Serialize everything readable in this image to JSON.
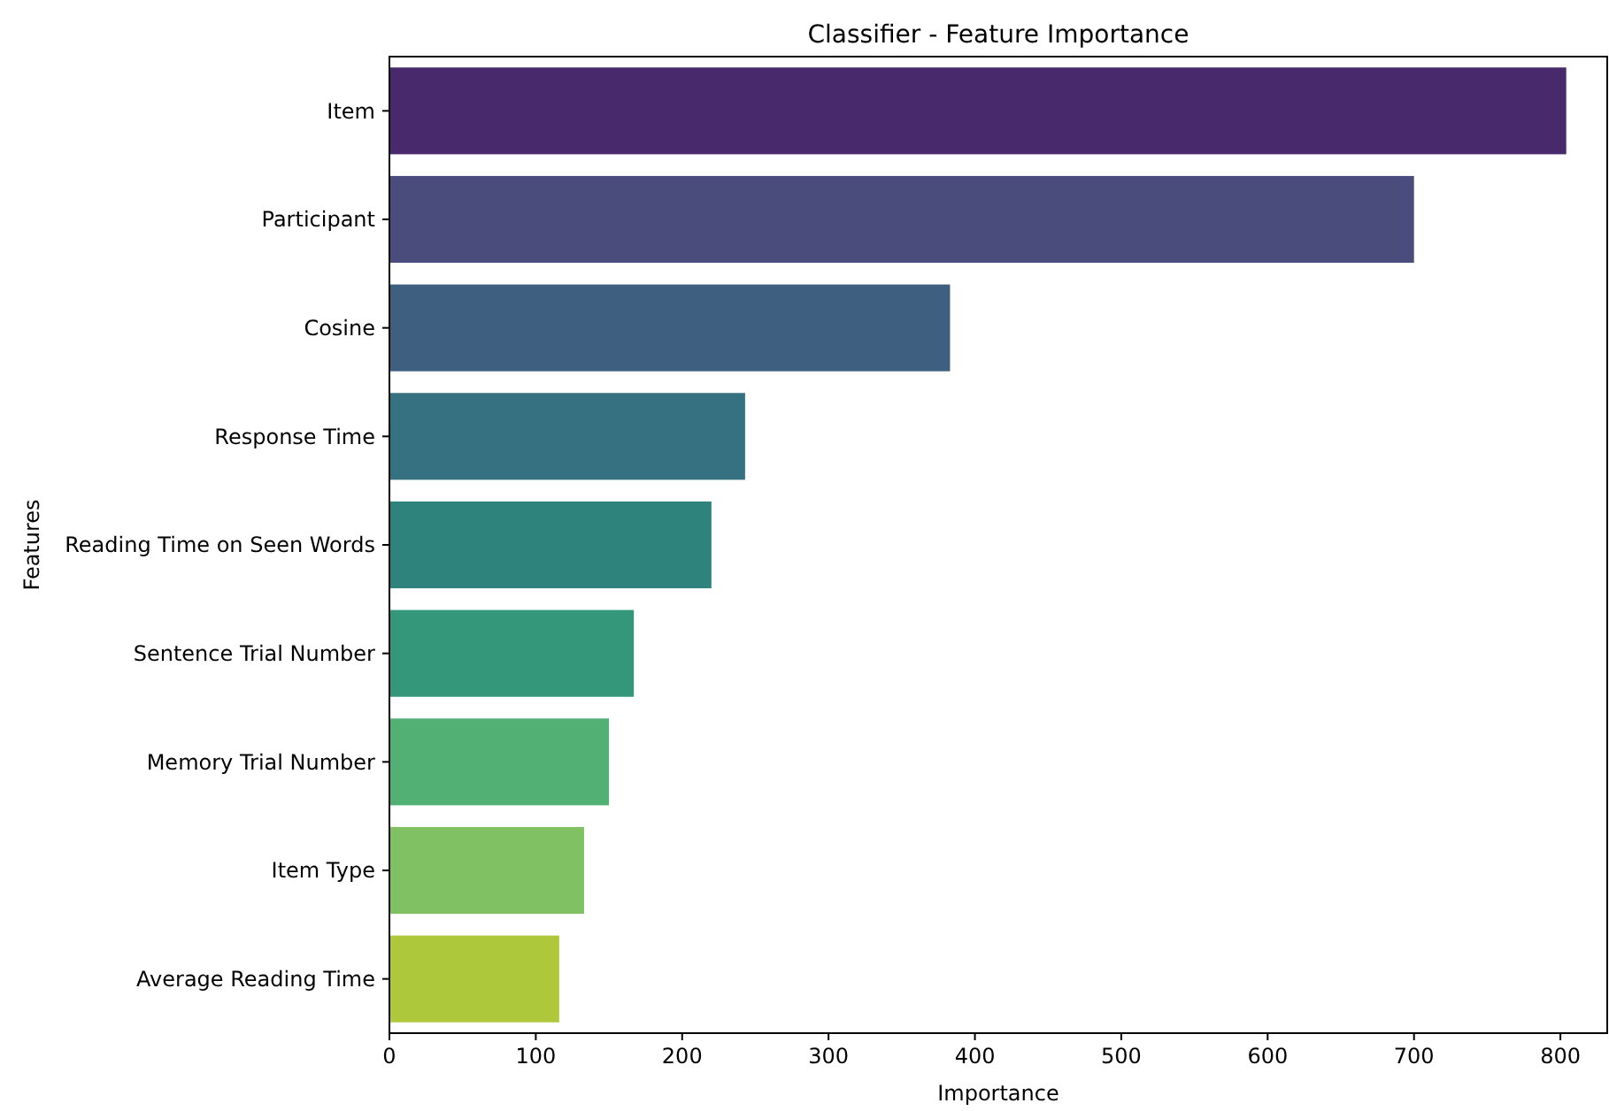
{
  "chart_data": {
    "type": "bar",
    "orientation": "horizontal",
    "title": "Classifier - Feature Importance",
    "xlabel": "Importance",
    "ylabel": "Features",
    "categories": [
      "Item",
      "Participant",
      "Cosine",
      "Response Time",
      "Reading Time on Seen Words",
      "Sentence Trial Number",
      "Memory Trial Number",
      "Item Type",
      "Average Reading Time"
    ],
    "values": [
      804,
      700,
      383,
      243,
      220,
      167,
      150,
      133,
      116
    ],
    "colors": [
      "#482a6c",
      "#4a4c7c",
      "#3f5f81",
      "#357180",
      "#2e837c",
      "#34977a",
      "#52b074",
      "#80c263",
      "#aec83c"
    ],
    "xlim": [
      0,
      832
    ],
    "xticks": [
      0,
      100,
      200,
      300,
      400,
      500,
      600,
      700,
      800
    ],
    "grid": false
  }
}
